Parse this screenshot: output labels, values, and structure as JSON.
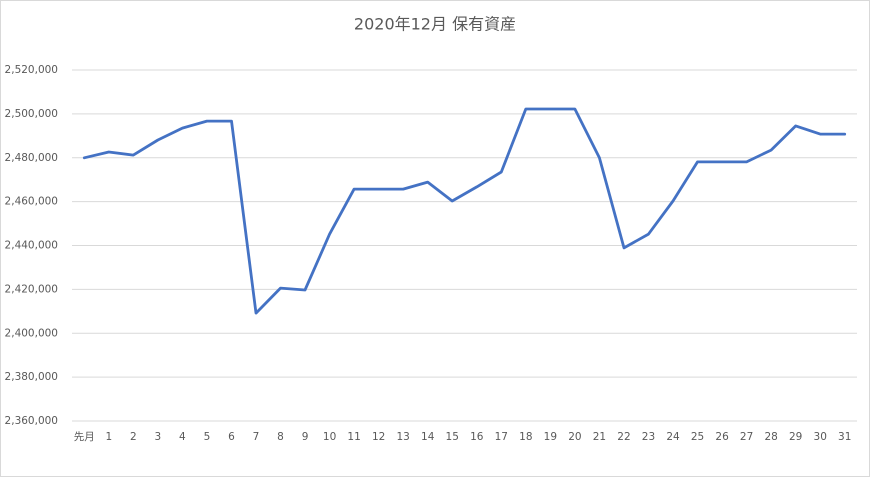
{
  "chart_data": {
    "type": "line",
    "title": "2020年12月 保有資産",
    "categories": [
      "先月",
      "1",
      "2",
      "3",
      "4",
      "5",
      "6",
      "7",
      "8",
      "9",
      "10",
      "11",
      "12",
      "13",
      "14",
      "15",
      "16",
      "17",
      "18",
      "19",
      "20",
      "21",
      "22",
      "23",
      "24",
      "25",
      "26",
      "27",
      "28",
      "29",
      "30",
      "31"
    ],
    "series": [
      {
        "name": "保有資産",
        "color": "#4472c4",
        "values": [
          2480000,
          2482600,
          2481200,
          2488100,
          2493500,
          2496700,
          2496700,
          2409200,
          2420600,
          2419700,
          2445200,
          2465700,
          2465700,
          2465700,
          2468900,
          2460300,
          2466700,
          2473500,
          2502200,
          2502200,
          2502200,
          2480000,
          2438900,
          2445200,
          2460300,
          2478100,
          2478100,
          2478100,
          2483500,
          2494500,
          2490800,
          2490800
        ]
      }
    ],
    "ylim": [
      2360000,
      2520000
    ],
    "yticks": [
      {
        "value": 2360000,
        "label": "2,360,000"
      },
      {
        "value": 2380000,
        "label": "2,380,000"
      },
      {
        "value": 2400000,
        "label": "2,400,000"
      },
      {
        "value": 2420000,
        "label": "2,420,000"
      },
      {
        "value": 2440000,
        "label": "2,440,000"
      },
      {
        "value": 2460000,
        "label": "2,460,000"
      },
      {
        "value": 2480000,
        "label": "2,480,000"
      },
      {
        "value": 2500000,
        "label": "2,500,000"
      },
      {
        "value": 2520000,
        "label": "2,520,000"
      }
    ],
    "grid": true
  }
}
